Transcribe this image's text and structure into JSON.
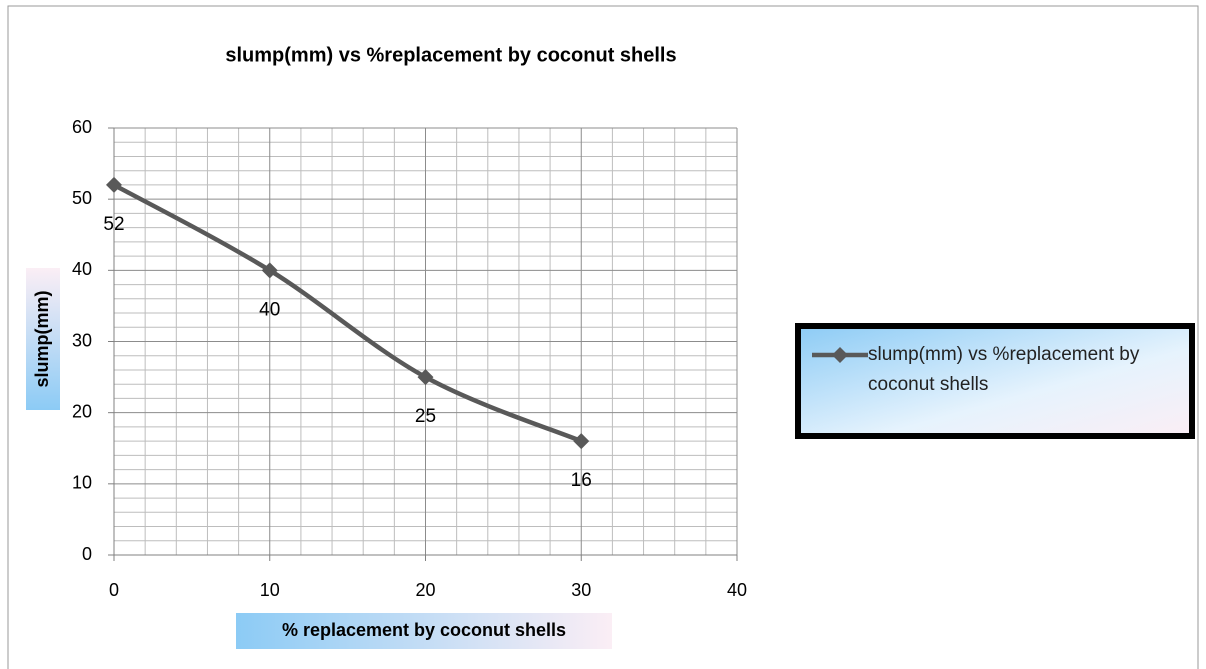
{
  "chart_data": {
    "type": "line",
    "title": "slump(mm) vs %replacement by coconut shells",
    "x_label": "% replacement by coconut shells",
    "y_label": "slump(mm)",
    "x": [
      0,
      10,
      20,
      30
    ],
    "series": [
      {
        "name": "slump(mm) vs %replacement by coconut shells",
        "color": "#595959",
        "values": [
          52,
          40,
          25,
          16
        ]
      }
    ],
    "xlim": [
      0,
      40
    ],
    "xticks": [
      0,
      10,
      20,
      30,
      40
    ],
    "ylim": [
      0,
      60
    ],
    "yticks": [
      0,
      10,
      20,
      30,
      40,
      50,
      60
    ],
    "grid": true,
    "minor_grid": true,
    "smooth": true,
    "data_labels": true,
    "legend": "right"
  }
}
